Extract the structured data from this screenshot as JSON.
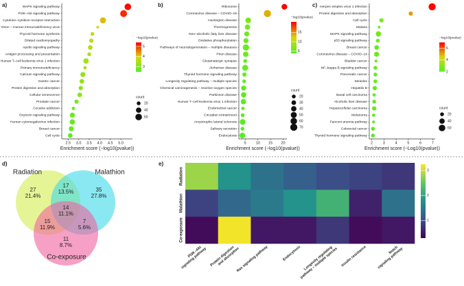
{
  "chart_data": [
    {
      "type": "dot",
      "panel": "a)",
      "categories": [
        "MAPK signaling pathway",
        "PI3K–Akt signaling pathway",
        "Cytokine–cytokine receptor interaction",
        "Virion – Human immunodeficiency virus",
        "Thyroid hormone synthesis",
        "Dilated cardiomyopathy",
        "Apelin signaling pathway",
        "Antigen processing and presentation",
        "Human T–cell leukemia virus 1 infection",
        "Primary immunodeficiency",
        "Calcium signaling pathway",
        "Gastric cancer",
        "Protein digestion and absorption",
        "Cellular senescence",
        "Prostate cancer",
        "Cocaine addiction",
        "Oxytocin signaling pathway",
        "Human cytomegalovirus infection",
        "Breast cancer",
        "Cell cycle"
      ],
      "values": [
        5.33,
        5.13,
        4.15,
        3.9,
        3.65,
        3.6,
        3.55,
        3.5,
        3.35,
        3.3,
        3.2,
        3.15,
        3.1,
        3.05,
        2.9,
        2.75,
        2.7,
        2.7,
        2.65,
        2.6
      ],
      "sizes": [
        60,
        65,
        50,
        10,
        20,
        25,
        30,
        20,
        40,
        15,
        35,
        30,
        25,
        30,
        25,
        15,
        35,
        40,
        35,
        30
      ],
      "xlim": [
        2.2,
        5.55
      ],
      "xticks": [
        2.5,
        {
          "value": 3,
          "label": "3.0"
        },
        3.5,
        {
          "value": 4,
          "label": "4.0"
        },
        4.5,
        {
          "value": 5,
          "label": "5.0"
        }
      ],
      "xlabel": "Enrichment score (−log10(pvalue))",
      "color_title": "−log10(pvalue)",
      "clim": [
        2.5,
        5.4
      ],
      "cticks": [
        3,
        4,
        5
      ],
      "colorscale": [
        "#55ee22",
        "#d8d80a",
        "#ff0000"
      ],
      "size_title": "count",
      "size_legend": [
        20,
        40,
        60
      ]
    },
    {
      "type": "dot",
      "panel": "b)",
      "categories": [
        "Ribosome",
        "Coronavirus disease – COVID–19",
        "Huntington disease",
        "Thermogenesis",
        "Non–alcoholic fatty liver disease",
        "Oxidative phosphorylation",
        "Pathways of neurodegeneration – multiple diseases",
        "Prion disease",
        "Glutamatergic synapse",
        "Alzheimer disease",
        "Thyroid hormone signaling pathway",
        "Longevity regulating pathway – multiple species",
        "Chemical carcinogenesis – reactive oxygen species",
        "Parkinson disease",
        "Human T–cell leukemia virus 1 infection",
        "Endometrial cancer",
        "Circadian entrainment",
        "Amyotrophic lateral sclerosis",
        "Salivary secretion",
        "Endocytosis"
      ],
      "values": [
        20.5,
        13.8,
        6.2,
        5.9,
        5.6,
        5.3,
        5.3,
        5.2,
        5,
        5,
        4.7,
        4.6,
        4.4,
        4.4,
        4.3,
        4.1,
        4,
        4,
        3.9,
        3.9
      ],
      "sizes": [
        45,
        70,
        45,
        40,
        35,
        35,
        55,
        40,
        20,
        50,
        25,
        20,
        35,
        40,
        40,
        15,
        20,
        45,
        20,
        45
      ],
      "xlim": [
        2.5,
        21.5
      ],
      "xticks": [
        5,
        10,
        15,
        20
      ],
      "xlabel": "Enrichment score (−log10(pvalue))",
      "color_title": "−log10(pvalue)",
      "clim": [
        3.8,
        20.6
      ],
      "cticks": [
        5,
        10,
        15
      ],
      "colorscale": [
        "#55ee22",
        "#d8d80a",
        "#ff0000"
      ],
      "size_title": "count",
      "size_legend": [
        20,
        30,
        40,
        50,
        60,
        70
      ]
    },
    {
      "type": "dot",
      "panel": "c)",
      "categories": [
        "Herpes simplex virus 1 infection",
        "Protein digestion and absorption",
        "Cell cycle",
        "Malaria",
        "MAPK signaling pathway",
        "p53 signaling pathway",
        "Breast cancer",
        "Coronavirus disease – COVID–19",
        "Bladder cancer",
        "NF–kappa B signaling pathway",
        "Pancreatic cancer",
        "Measles",
        "Hepatitis B",
        "Basal cell carcinoma",
        "Alcoholic liver disease",
        "Hepatocellular carcinoma",
        "Melanoma",
        "Fanconi anemia pathway",
        "Colorectal cancer",
        "Thyroid hormone signaling pathway"
      ],
      "values": [
        6.95,
        5.2,
        2.8,
        2.6,
        2.55,
        2.5,
        2.4,
        2.4,
        2.35,
        2.3,
        2.3,
        2.3,
        2.25,
        2.2,
        2.2,
        2.2,
        2.15,
        2.15,
        2.1,
        2.1
      ],
      "sizes": [
        70,
        25,
        25,
        10,
        40,
        20,
        30,
        35,
        12,
        20,
        20,
        20,
        25,
        15,
        20,
        25,
        15,
        12,
        20,
        20
      ],
      "xlim": [
        1.8,
        7.2
      ],
      "xticks": [
        2,
        3,
        4,
        5,
        6,
        7
      ],
      "xlabel": "Enrichment score (−Log10(pvalue))",
      "color_title": "−log10(pvalue)",
      "clim": [
        2,
        7
      ],
      "cticks": [
        2,
        4,
        6
      ],
      "colorscale": [
        "#55ee22",
        "#d8d80a",
        "#ff0000"
      ],
      "size_title": "count",
      "size_legend": [
        20,
        40,
        60
      ]
    },
    {
      "type": "venn",
      "panel": "d)",
      "sets": [
        "Radiation",
        "Malathion",
        "Co-exposure"
      ],
      "colors": [
        "#d4ec4e",
        "#3cd8ea",
        "#f0609f"
      ],
      "regions": [
        {
          "count": 27,
          "percent": "21.4%"
        },
        {
          "count": 17,
          "percent": "13.5%"
        },
        {
          "count": 35,
          "percent": "27.8%"
        },
        {
          "count": 14,
          "percent": "11.1%"
        },
        {
          "count": 15,
          "percent": "11.9%"
        },
        {
          "count": 7,
          "percent": "5.6%"
        },
        {
          "count": 11,
          "percent": "8.7%"
        }
      ]
    },
    {
      "type": "heatmap",
      "panel": "e)",
      "rows": [
        "Radiation",
        "Malathion",
        "Co-exposure"
      ],
      "columns": [
        "PI3K–Akt signaling pathway",
        "Protein digestion and absorption",
        "Ras signaling pathway",
        "Endocytosis",
        "Longevity regulating pathway – multiple species",
        "Insulin resistance",
        "Notch signaling pathway"
      ],
      "values": [
        [
          2.8,
          1.8,
          1.4,
          1.2,
          1.0,
          0.9,
          0.8
        ],
        [
          0.9,
          1.3,
          1.5,
          1.8,
          2.2,
          0.6,
          1.4
        ],
        [
          0.4,
          3.2,
          0.5,
          0.5,
          0.8,
          0.4,
          0.5
        ]
      ],
      "clim": [
        0.3,
        3.25
      ],
      "cticks": [
        1,
        2,
        3
      ],
      "colorscale": [
        "#440154",
        "#3b528b",
        "#21918c",
        "#5ec962",
        "#fde725"
      ]
    }
  ]
}
